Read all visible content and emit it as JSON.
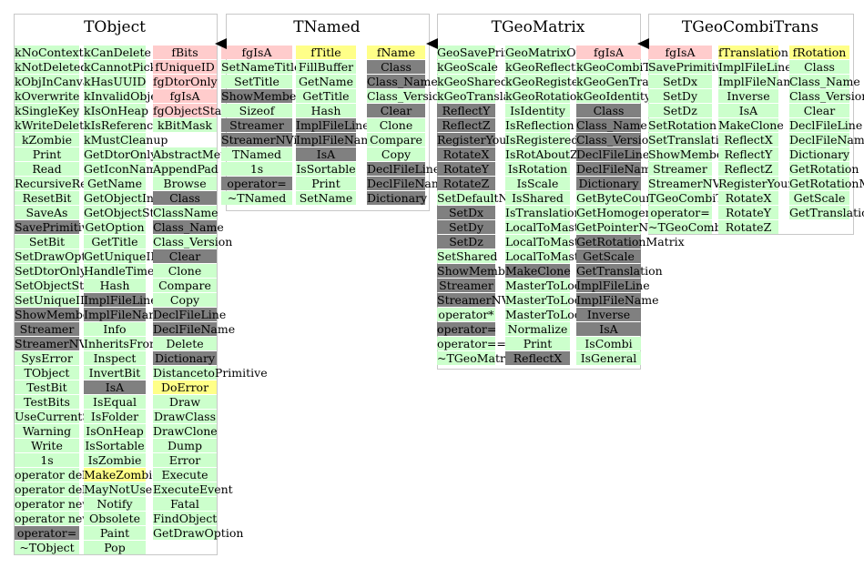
{
  "classes": [
    {
      "name": "TObject",
      "columns": [
        [
          [
            "kNoContextMenu",
            "g"
          ],
          [
            "kNotDeleted",
            "g"
          ],
          [
            "kObjInCanvas",
            "g"
          ],
          [
            "kOverwrite",
            "g"
          ],
          [
            "kSingleKey",
            "g"
          ],
          [
            "kWriteDelete",
            "g"
          ],
          [
            "kZombie",
            "g"
          ],
          [
            "Print",
            "g"
          ],
          [
            "Read",
            "g"
          ],
          [
            "RecursiveRemove",
            "g"
          ],
          [
            "ResetBit",
            "g"
          ],
          [
            "SaveAs",
            "g"
          ],
          [
            "SavePrimitive",
            "d"
          ],
          [
            "SetBit",
            "g"
          ],
          [
            "SetDrawOption",
            "g"
          ],
          [
            "SetDtorOnly",
            "g"
          ],
          [
            "SetObjectStat",
            "g"
          ],
          [
            "SetUniqueID",
            "g"
          ],
          [
            "ShowMembers",
            "d"
          ],
          [
            "Streamer",
            "d"
          ],
          [
            "StreamerNVirtual",
            "d"
          ],
          [
            "SysError",
            "g"
          ],
          [
            "TObject",
            "g"
          ],
          [
            "TestBit",
            "g"
          ],
          [
            "TestBits",
            "g"
          ],
          [
            "UseCurrentStyle",
            "g"
          ],
          [
            "Warning",
            "g"
          ],
          [
            "Write",
            "g"
          ],
          [
            "1s",
            "g"
          ],
          [
            "operator delete",
            "g"
          ],
          [
            "operator delete[]",
            "g"
          ],
          [
            "operator new",
            "g"
          ],
          [
            "operator new[]",
            "g"
          ],
          [
            "operator=",
            "d"
          ],
          [
            "~TObject",
            "g"
          ]
        ],
        [
          [
            "kCanDelete",
            "g"
          ],
          [
            "kCannotPick",
            "g"
          ],
          [
            "kHasUUID",
            "g"
          ],
          [
            "kInvalidObject",
            "g"
          ],
          [
            "kIsOnHeap",
            "g"
          ],
          [
            "kIsReferenced",
            "g"
          ],
          [
            "kMustCleanup",
            "g"
          ],
          [
            "GetDtorOnly",
            "g"
          ],
          [
            "GetIconName",
            "g"
          ],
          [
            "GetName",
            "g"
          ],
          [
            "GetObjectInfo",
            "g"
          ],
          [
            "GetObjectStat",
            "g"
          ],
          [
            "GetOption",
            "g"
          ],
          [
            "GetTitle",
            "g"
          ],
          [
            "GetUniqueID",
            "g"
          ],
          [
            "HandleTimer",
            "g"
          ],
          [
            "Hash",
            "g"
          ],
          [
            "ImplFileLine",
            "d"
          ],
          [
            "ImplFileName",
            "d"
          ],
          [
            "Info",
            "g"
          ],
          [
            "InheritsFrom",
            "g"
          ],
          [
            "Inspect",
            "g"
          ],
          [
            "InvertBit",
            "g"
          ],
          [
            "IsA",
            "d"
          ],
          [
            "IsEqual",
            "g"
          ],
          [
            "IsFolder",
            "g"
          ],
          [
            "IsOnHeap",
            "g"
          ],
          [
            "IsSortable",
            "g"
          ],
          [
            "IsZombie",
            "g"
          ],
          [
            "MakeZombie",
            "y"
          ],
          [
            "MayNotUse",
            "g"
          ],
          [
            "Notify",
            "g"
          ],
          [
            "Obsolete",
            "g"
          ],
          [
            "Paint",
            "g"
          ],
          [
            "Pop",
            "g"
          ]
        ],
        [
          [
            "fBits",
            "p"
          ],
          [
            "fUniqueID",
            "p"
          ],
          [
            "fgDtorOnly",
            "p"
          ],
          [
            "fgIsA",
            "p"
          ],
          [
            "fgObjectStat",
            "p"
          ],
          [
            "kBitMask",
            "g"
          ],
          [
            "",
            ""
          ],
          [
            "AbstractMethod",
            "g"
          ],
          [
            "AppendPad",
            "g"
          ],
          [
            "Browse",
            "g"
          ],
          [
            "Class",
            "d"
          ],
          [
            "ClassName",
            "g"
          ],
          [
            "Class_Name",
            "d"
          ],
          [
            "Class_Version",
            "g"
          ],
          [
            "Clear",
            "d"
          ],
          [
            "Clone",
            "g"
          ],
          [
            "Compare",
            "g"
          ],
          [
            "Copy",
            "g"
          ],
          [
            "DeclFileLine",
            "d"
          ],
          [
            "DeclFileName",
            "d"
          ],
          [
            "Delete",
            "g"
          ],
          [
            "Dictionary",
            "d"
          ],
          [
            "DistancetoPrimitive",
            "g"
          ],
          [
            "DoError",
            "y"
          ],
          [
            "Draw",
            "g"
          ],
          [
            "DrawClass",
            "g"
          ],
          [
            "DrawClone",
            "g"
          ],
          [
            "Dump",
            "g"
          ],
          [
            "Error",
            "g"
          ],
          [
            "Execute",
            "g"
          ],
          [
            "ExecuteEvent",
            "g"
          ],
          [
            "Fatal",
            "g"
          ],
          [
            "FindObject",
            "g"
          ],
          [
            "GetDrawOption",
            "g"
          ]
        ]
      ]
    },
    {
      "name": "TNamed",
      "columns": [
        [
          [
            "fgIsA",
            "p"
          ],
          [
            "SetNameTitle",
            "g"
          ],
          [
            "SetTitle",
            "g"
          ],
          [
            "ShowMembers",
            "d"
          ],
          [
            "Sizeof",
            "g"
          ],
          [
            "Streamer",
            "d"
          ],
          [
            "StreamerNVirtual",
            "d"
          ],
          [
            "TNamed",
            "g"
          ],
          [
            "1s",
            "g"
          ],
          [
            "operator=",
            "d"
          ],
          [
            "~TNamed",
            "g"
          ]
        ],
        [
          [
            "fTitle",
            "y"
          ],
          [
            "FillBuffer",
            "g"
          ],
          [
            "GetName",
            "g"
          ],
          [
            "GetTitle",
            "g"
          ],
          [
            "Hash",
            "g"
          ],
          [
            "ImplFileLine",
            "d"
          ],
          [
            "ImplFileName",
            "d"
          ],
          [
            "IsA",
            "d"
          ],
          [
            "IsSortable",
            "g"
          ],
          [
            "Print",
            "g"
          ],
          [
            "SetName",
            "g"
          ]
        ],
        [
          [
            "fName",
            "y"
          ],
          [
            "Class",
            "d"
          ],
          [
            "Class_Name",
            "d"
          ],
          [
            "Class_Version",
            "g"
          ],
          [
            "Clear",
            "d"
          ],
          [
            "Clone",
            "g"
          ],
          [
            "Compare",
            "g"
          ],
          [
            "Copy",
            "g"
          ],
          [
            "DeclFileLine",
            "d"
          ],
          [
            "DeclFileName",
            "d"
          ],
          [
            "Dictionary",
            "d"
          ]
        ]
      ]
    },
    {
      "name": "TGeoMatrix",
      "columns": [
        [
          [
            "GeoSavePrimitive",
            "g"
          ],
          [
            "kGeoScale",
            "g"
          ],
          [
            "kGeoShared",
            "g"
          ],
          [
            "kGeoTranslation",
            "g"
          ],
          [
            "ReflectY",
            "d"
          ],
          [
            "ReflectZ",
            "d"
          ],
          [
            "RegisterYourself",
            "d"
          ],
          [
            "RotateX",
            "d"
          ],
          [
            "RotateY",
            "d"
          ],
          [
            "RotateZ",
            "d"
          ],
          [
            "SetDefaultName",
            "g"
          ],
          [
            "SetDx",
            "d"
          ],
          [
            "SetDy",
            "d"
          ],
          [
            "SetDz",
            "d"
          ],
          [
            "SetShared",
            "g"
          ],
          [
            "ShowMembers",
            "d"
          ],
          [
            "Streamer",
            "d"
          ],
          [
            "StreamerNVirtual",
            "d"
          ],
          [
            "operator*",
            "g"
          ],
          [
            "operator=",
            "d"
          ],
          [
            "operator==",
            "g"
          ],
          [
            "~TGeoMatrix",
            "g"
          ]
        ],
        [
          [
            "GeoMatrixOwned",
            "g"
          ],
          [
            "kGeoReflection",
            "g"
          ],
          [
            "kGeoRegistered",
            "g"
          ],
          [
            "kGeoRotation",
            "g"
          ],
          [
            "IsIdentity",
            "g"
          ],
          [
            "IsReflection",
            "g"
          ],
          [
            "IsRegistered",
            "g"
          ],
          [
            "IsRotAboutZ",
            "g"
          ],
          [
            "IsRotation",
            "g"
          ],
          [
            "IsScale",
            "g"
          ],
          [
            "IsShared",
            "g"
          ],
          [
            "IsTranslation",
            "g"
          ],
          [
            "LocalToMaster",
            "g"
          ],
          [
            "LocalToMasterBomb",
            "g"
          ],
          [
            "LocalToMasterVect",
            "g"
          ],
          [
            "MakeClone",
            "d"
          ],
          [
            "MasterToLocal",
            "g"
          ],
          [
            "MasterToLocalBomb",
            "g"
          ],
          [
            "MasterToLocalVect",
            "g"
          ],
          [
            "Normalize",
            "g"
          ],
          [
            "Print",
            "g"
          ],
          [
            "ReflectX",
            "d"
          ]
        ],
        [
          [
            "fgIsA",
            "p"
          ],
          [
            "kGeoCombiTrans",
            "g"
          ],
          [
            "kGeoGenTrans",
            "g"
          ],
          [
            "kGeoIdentity",
            "g"
          ],
          [
            "Class",
            "d"
          ],
          [
            "Class_Name",
            "d"
          ],
          [
            "Class_Version",
            "d"
          ],
          [
            "DeclFileLine",
            "d"
          ],
          [
            "DeclFileName",
            "d"
          ],
          [
            "Dictionary",
            "d"
          ],
          [
            "GetByteCount",
            "g"
          ],
          [
            "GetHomogenousMatrix",
            "g"
          ],
          [
            "GetPointerName",
            "g"
          ],
          [
            "GetRotationMatrix",
            "d"
          ],
          [
            "GetScale",
            "d"
          ],
          [
            "GetTranslation",
            "d"
          ],
          [
            "ImplFileLine",
            "d"
          ],
          [
            "ImplFileName",
            "d"
          ],
          [
            "Inverse",
            "d"
          ],
          [
            "IsA",
            "d"
          ],
          [
            "IsCombi",
            "g"
          ],
          [
            "IsGeneral",
            "g"
          ]
        ]
      ]
    },
    {
      "name": "TGeoCombiTrans",
      "columns": [
        [
          [
            "fgIsA",
            "p"
          ],
          [
            "SavePrimitive",
            "g"
          ],
          [
            "SetDx",
            "g"
          ],
          [
            "SetDy",
            "g"
          ],
          [
            "SetDz",
            "g"
          ],
          [
            "SetRotation",
            "g"
          ],
          [
            "SetTranslation",
            "g"
          ],
          [
            "ShowMembers",
            "g"
          ],
          [
            "Streamer",
            "g"
          ],
          [
            "StreamerNVirtual",
            "g"
          ],
          [
            "TGeoCombiTrans",
            "g"
          ],
          [
            "operator=",
            "g"
          ],
          [
            "~TGeoCombiTrans",
            "g"
          ]
        ],
        [
          [
            "fTranslation",
            "y"
          ],
          [
            "ImplFileLine",
            "g"
          ],
          [
            "ImplFileName",
            "g"
          ],
          [
            "Inverse",
            "g"
          ],
          [
            "IsA",
            "g"
          ],
          [
            "MakeClone",
            "g"
          ],
          [
            "ReflectX",
            "g"
          ],
          [
            "ReflectY",
            "g"
          ],
          [
            "ReflectZ",
            "g"
          ],
          [
            "RegisterYourself",
            "g"
          ],
          [
            "RotateX",
            "g"
          ],
          [
            "RotateY",
            "g"
          ],
          [
            "RotateZ",
            "g"
          ]
        ],
        [
          [
            "fRotation",
            "y"
          ],
          [
            "Class",
            "g"
          ],
          [
            "Class_Name",
            "g"
          ],
          [
            "Class_Version",
            "g"
          ],
          [
            "Clear",
            "g"
          ],
          [
            "DeclFileLine",
            "g"
          ],
          [
            "DeclFileName",
            "g"
          ],
          [
            "Dictionary",
            "g"
          ],
          [
            "GetRotation",
            "g"
          ],
          [
            "GetRotationMatrix",
            "g"
          ],
          [
            "GetScale",
            "g"
          ],
          [
            "GetTranslation",
            "g"
          ],
          [
            "",
            ""
          ]
        ]
      ]
    }
  ]
}
